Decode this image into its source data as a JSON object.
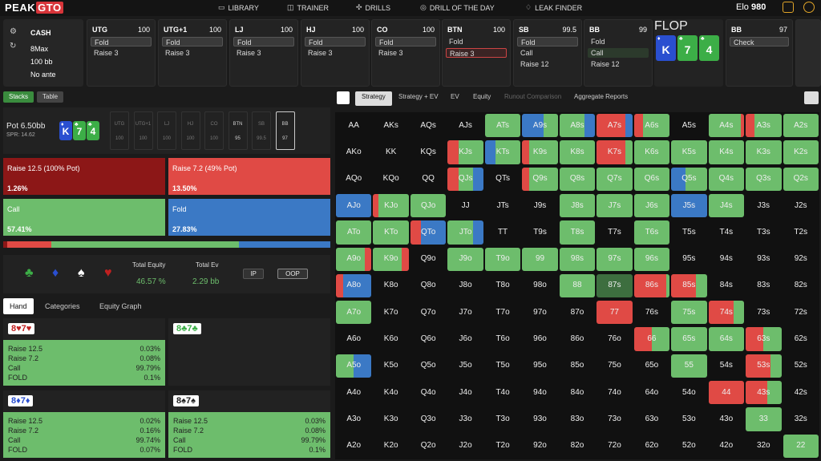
{
  "header": {
    "logo_a": "PEAK",
    "logo_b": "GTO",
    "nav": [
      "LIBRARY",
      "TRAINER",
      "DRILLS",
      "DRILL OF THE DAY",
      "LEAK FINDER"
    ],
    "elo_label": "Elo",
    "elo_value": "980"
  },
  "game": {
    "type": "CASH",
    "format": "8Max",
    "stack": "100 bb",
    "ante": "No ante"
  },
  "positions": [
    {
      "name": "UTG",
      "stack": "100",
      "opts": [
        "Fold",
        "Raise 3"
      ],
      "sel": 0
    },
    {
      "name": "UTG+1",
      "stack": "100",
      "opts": [
        "Fold",
        "Raise 3"
      ],
      "sel": 0
    },
    {
      "name": "LJ",
      "stack": "100",
      "opts": [
        "Fold",
        "Raise 3"
      ],
      "sel": 0
    },
    {
      "name": "HJ",
      "stack": "100",
      "opts": [
        "Fold",
        "Raise 3"
      ],
      "sel": 0
    },
    {
      "name": "CO",
      "stack": "100",
      "opts": [
        "Fold",
        "Raise 3"
      ],
      "sel": 0
    },
    {
      "name": "BTN",
      "stack": "100",
      "opts": [
        "Fold",
        "Raise 3"
      ],
      "sel": 1
    },
    {
      "name": "SB",
      "stack": "99.5",
      "opts": [
        "Fold",
        "Call",
        "Raise 12"
      ],
      "sel": 0
    },
    {
      "name": "BB",
      "stack": "99",
      "opts": [
        "Fold",
        "Call",
        "Raise 12"
      ],
      "sel": 1
    },
    {
      "name": "FLOP",
      "stack": "",
      "opts": [],
      "sel": -1
    },
    {
      "name": "BB",
      "stack": "97",
      "opts": [
        "Check"
      ],
      "sel": 0
    }
  ],
  "flop": [
    {
      "rank": "K",
      "suit": "♦",
      "color": "#2a4fd0"
    },
    {
      "rank": "7",
      "suit": "♣",
      "color": "#3cae47"
    },
    {
      "rank": "4",
      "suit": "♣",
      "color": "#3cae47"
    }
  ],
  "toggles": [
    "Stacks",
    "Table"
  ],
  "pot": {
    "label": "Pot",
    "value": "6.50bb",
    "spr": "SPR: 14.62"
  },
  "seats": [
    {
      "n": "UTG",
      "s": "100"
    },
    {
      "n": "UTG+1",
      "s": "100"
    },
    {
      "n": "LJ",
      "s": "100"
    },
    {
      "n": "HJ",
      "s": "100"
    },
    {
      "n": "CO",
      "s": "100"
    },
    {
      "n": "BTN",
      "s": "95"
    },
    {
      "n": "SB",
      "s": "99.5"
    },
    {
      "n": "BB",
      "s": "97"
    }
  ],
  "actions": [
    {
      "label": "Raise 12.5 (100% Pot)",
      "pct": "1.26%",
      "color": "#8c1717"
    },
    {
      "label": "Raise 7.2 (49% Pot)",
      "pct": "13.50%",
      "color": "#e04a45"
    },
    {
      "label": "Call",
      "pct": "57.41%",
      "color": "#6dbd6c"
    },
    {
      "label": "Fold",
      "pct": "27.83%",
      "color": "#3b79c5"
    }
  ],
  "freq_bar": [
    {
      "v": 1.26,
      "c": "#8c1717"
    },
    {
      "v": 13.5,
      "c": "#e04a45"
    },
    {
      "v": 57.41,
      "c": "#6dbd6c"
    },
    {
      "v": 27.83,
      "c": "#3b79c5"
    }
  ],
  "equity": {
    "suits": [
      "♣",
      "♦",
      "♠",
      "♥"
    ],
    "total_equity_label": "Total Equity",
    "total_equity": "46.57 %",
    "total_ev_label": "Total Ev",
    "total_ev": "2.29 bb",
    "ip": "IP",
    "oop": "OOP"
  },
  "lower_tabs": [
    "Hand",
    "Categories",
    "Equity Graph"
  ],
  "hand_cards": [
    {
      "combo": "8♥7♥",
      "color": "#c02020",
      "stats": [
        {
          "a": "Raise 12.5",
          "v": "0.03%"
        },
        {
          "a": "Raise 7.2",
          "v": "0.08%"
        },
        {
          "a": "Call",
          "v": "99.79%"
        },
        {
          "a": "FOLD",
          "v": "0.1%"
        }
      ]
    },
    {
      "combo": "8♣7♣",
      "color": "#3cae47",
      "stats": []
    },
    {
      "combo": "8♦7♦",
      "color": "#2a4fd0",
      "stats": [
        {
          "a": "Raise 12.5",
          "v": "0.02%"
        },
        {
          "a": "Raise 7.2",
          "v": "0.16%"
        },
        {
          "a": "Call",
          "v": "99.74%"
        },
        {
          "a": "FOLD",
          "v": "0.07%"
        }
      ]
    },
    {
      "combo": "8♠7♠",
      "color": "#222",
      "stats": [
        {
          "a": "Raise 12.5",
          "v": "0.03%"
        },
        {
          "a": "Raise 7.2",
          "v": "0.08%"
        },
        {
          "a": "Call",
          "v": "99.79%"
        },
        {
          "a": "FOLD",
          "v": "0.1%"
        }
      ]
    }
  ],
  "strategy_tabs": [
    "Strategy",
    "Strategy + EV",
    "EV",
    "Equity",
    "Runout Comparison",
    "Aggregate Reports"
  ],
  "ranks": [
    "A",
    "K",
    "Q",
    "J",
    "T",
    "9",
    "8",
    "7",
    "6",
    "5",
    "4",
    "3",
    "2"
  ],
  "matrix_colors": {
    "g": "#6dbd6c",
    "b": "#3b79c5",
    "r": "#e04a45",
    "d": "#8c1717",
    "k": "#3d6e3f"
  },
  "matrix": {
    "0,4": "g",
    "0,5": "b60g40",
    "0,6": "g70b30",
    "0,7": "r80b20",
    "0,8": "r25g75",
    "0,10": "g90r10",
    "0,11": "r25g75",
    "0,12": "g",
    "1,3": "r30g70",
    "1,4": "b30g70",
    "1,5": "r20g80",
    "1,6": "g",
    "1,7": "r80g20",
    "1,8": "g",
    "1,9": "g",
    "1,10": "g",
    "1,11": "g",
    "1,12": "g",
    "2,3": "r30g40b30",
    "2,5": "r20g80",
    "2,6": "g",
    "2,7": "g",
    "2,8": "g",
    "2,9": "b40g60",
    "2,10": "g",
    "2,11": "g",
    "2,12": "g",
    "3,0": "b",
    "3,1": "r15g85",
    "3,2": "g",
    "3,6": "g",
    "3,7": "g",
    "3,8": "g",
    "3,9": "b",
    "3,10": "g",
    "4,0": "g",
    "4,1": "g",
    "4,2": "r30b70",
    "4,3": "g70b30",
    "4,6": "g",
    "4,8": "g",
    "5,0": "g80r20",
    "5,1": "g80r20",
    "5,3": "g",
    "5,4": "g",
    "5,5": "g",
    "5,6": "g",
    "5,7": "g",
    "5,8": "g",
    "6,0": "r20b80",
    "6,6": "g",
    "6,7": "k",
    "6,8": "r90g10",
    "6,9": "r70g30",
    "7,0": "g",
    "7,7": "r",
    "7,9": "g",
    "7,10": "r70g30",
    "8,8": "r50g50",
    "8,9": "g",
    "8,10": "g",
    "8,11": "r50g50",
    "9,0": "g50b50",
    "9,9": "g",
    "9,11": "r70g30",
    "10,10": "r",
    "10,11": "r60g40",
    "11,11": "g",
    "12,12": "g"
  },
  "matrix_bar": {
    "0,0": "",
    "1,1": ""
  }
}
